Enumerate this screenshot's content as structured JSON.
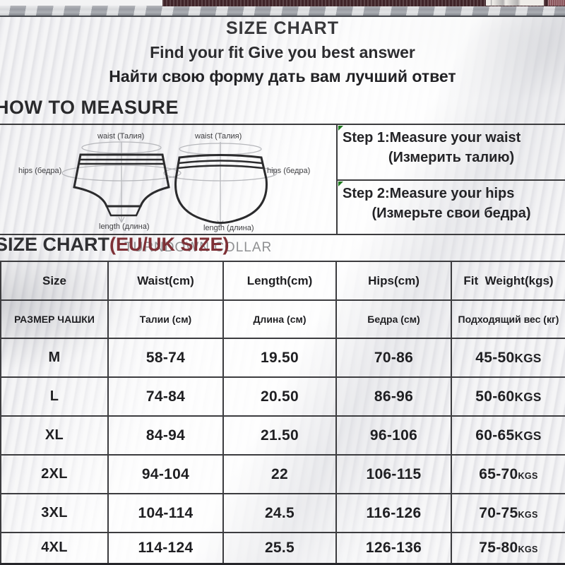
{
  "page": {
    "title": "SIZE CHART",
    "subtitle_en": "Find your fit Give you best answer",
    "subtitle_ru": "Найти свою форму дать вам лучший ответ"
  },
  "how_to_measure": {
    "heading": "HOW TO MEASURE",
    "diagram": {
      "waist_label": "waist (Талия)",
      "hips_label": "hips (бедра)",
      "length_label": "length (длина)"
    },
    "steps": [
      {
        "en": "Step 1:Measure your waist",
        "ru": "(Измерить талию)"
      },
      {
        "en": "Step 2:Measure your hips",
        "ru": "(Измерьте свои бедра)"
      }
    ]
  },
  "size_chart": {
    "heading": "SIZE CHART",
    "heading_suffix": "(EU/UK SIZE)",
    "watermark": "TURNDOWN COLLAR",
    "accent_color": "#7e3036",
    "watermark_color": "#8f9092",
    "columns_en": [
      "Size",
      "Waist(cm)",
      "Length(cm)",
      "Hips(cm)",
      "Fit  Weight(kgs)"
    ],
    "columns_ru": [
      "РАЗМЕР ЧАШКИ",
      "Талии (см)",
      "Длина (см)",
      "Бедра (см)",
      "Подходящий вес (кг)"
    ],
    "rows": [
      {
        "size": "M",
        "waist": "58-74",
        "length": "19.50",
        "hips": "70-86",
        "weight": "45-50",
        "weight_unit": "KGS",
        "small_unit": false
      },
      {
        "size": "L",
        "waist": "74-84",
        "length": "20.50",
        "hips": "86-96",
        "weight": "50-60",
        "weight_unit": "KGS",
        "small_unit": false
      },
      {
        "size": "XL",
        "waist": "84-94",
        "length": "21.50",
        "hips": "96-106",
        "weight": "60-65",
        "weight_unit": "KGS",
        "small_unit": false
      },
      {
        "size": "2XL",
        "waist": "94-104",
        "length": "22",
        "hips": "106-115",
        "weight": "65-70",
        "weight_unit": "KGS",
        "small_unit": true
      },
      {
        "size": "3XL",
        "waist": "104-114",
        "length": "24.5",
        "hips": "116-126",
        "weight": "70-75",
        "weight_unit": "KGS",
        "small_unit": true
      },
      {
        "size": "4XL",
        "waist": "114-124",
        "length": "25.5",
        "hips": "126-136",
        "weight": "75-80",
        "weight_unit": "KGS",
        "small_unit": true
      }
    ]
  }
}
